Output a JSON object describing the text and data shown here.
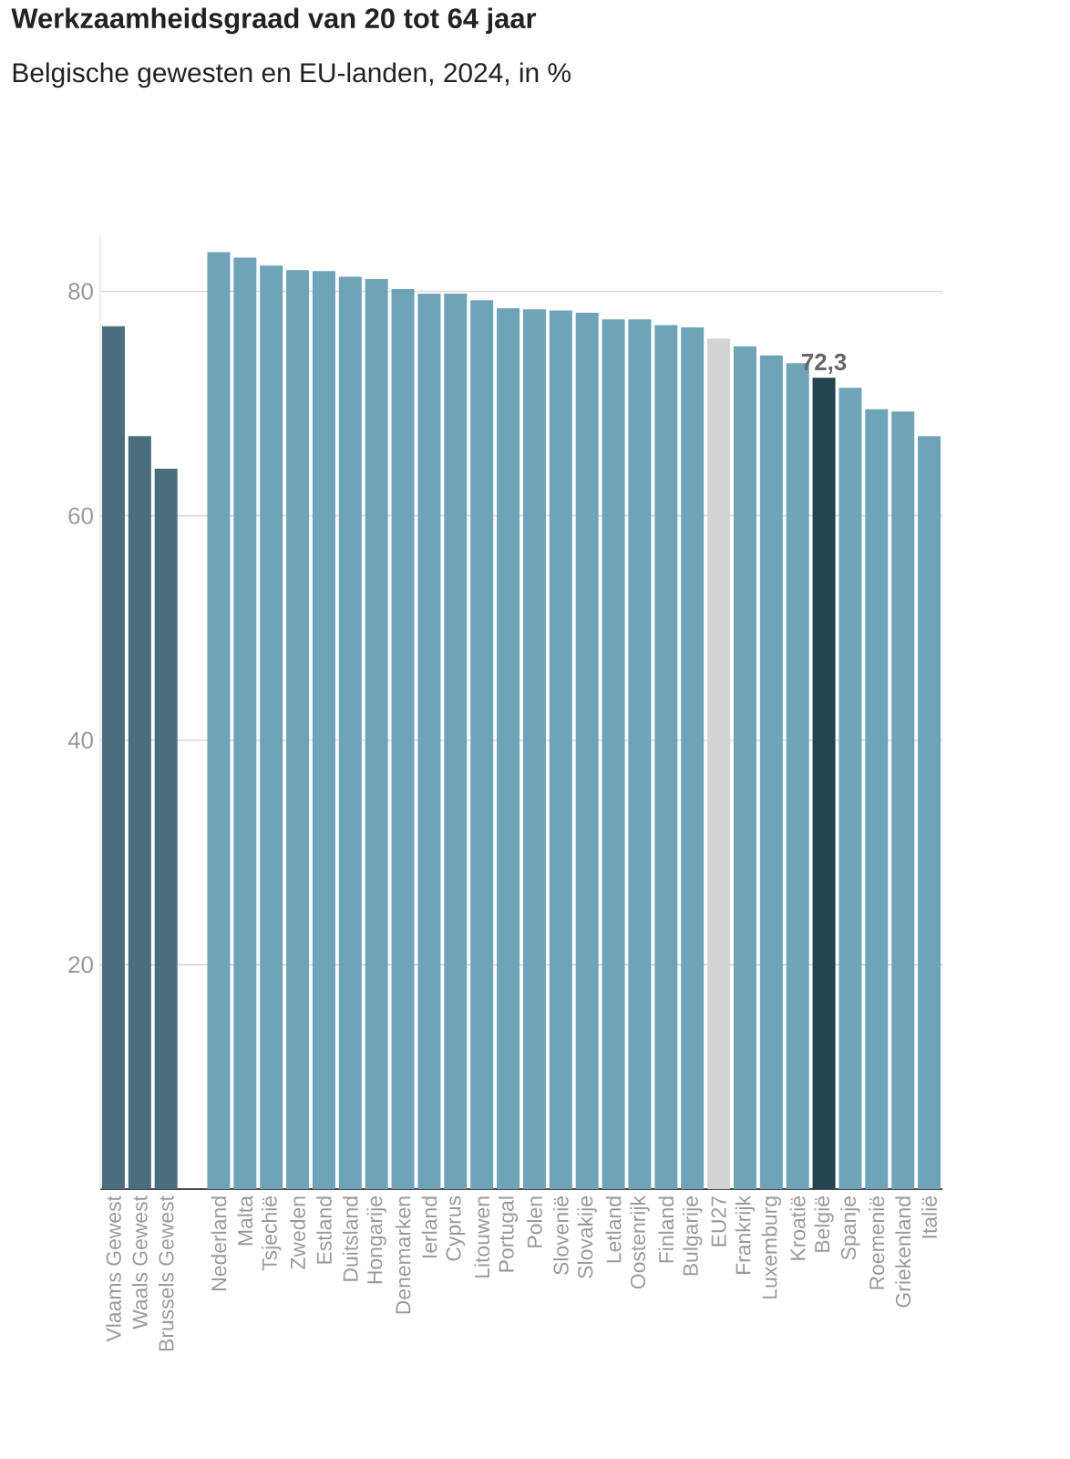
{
  "chart_data": {
    "type": "bar",
    "title": "Werkzaamheidsgraad van 20 tot 64 jaar",
    "subtitle": "Belgische gewesten en EU-landen, 2024, in %",
    "categories": [
      "Vlaams Gewest",
      "Waals Gewest",
      "Brussels Gewest",
      null,
      "Nederland",
      "Malta",
      "Tsjechië",
      "Zweden",
      "Estland",
      "Duitsland",
      "Hongarije",
      "Denemarken",
      "Ierland",
      "Cyprus",
      "Litouwen",
      "Portugal",
      "Polen",
      "Slovenië",
      "Slovakije",
      "Letland",
      "Oostenrijk",
      "Finland",
      "Bulgarije",
      "EU27",
      "Frankrijk",
      "Luxemburg",
      "Kroatië",
      "België",
      "Spanje",
      "Roemenië",
      "Griekenland",
      "Italië"
    ],
    "values": [
      76.9,
      67.1,
      64.2,
      null,
      83.5,
      83.0,
      82.3,
      81.9,
      81.8,
      81.3,
      81.1,
      80.2,
      79.8,
      79.8,
      79.2,
      78.5,
      78.4,
      78.3,
      78.1,
      77.5,
      77.5,
      77.0,
      76.8,
      75.8,
      75.1,
      74.3,
      73.6,
      72.3,
      71.4,
      69.5,
      69.3,
      67.1
    ],
    "colors": [
      "#4a6e7e",
      "#4a6e7e",
      "#4a6e7e",
      "#6fa3b8",
      "#6fa3b8",
      "#6fa3b8",
      "#6fa3b8",
      "#6fa3b8",
      "#6fa3b8",
      "#6fa3b8",
      "#6fa3b8",
      "#6fa3b8",
      "#6fa3b8",
      "#6fa3b8",
      "#6fa3b8",
      "#6fa3b8",
      "#6fa3b8",
      "#6fa3b8",
      "#6fa3b8",
      "#6fa3b8",
      "#6fa3b8",
      "#6fa3b8",
      "#6fa3b8",
      "#d3d3d3",
      "#6fa3b8",
      "#6fa3b8",
      "#6fa3b8",
      "#22434f",
      "#6fa3b8",
      "#6fa3b8",
      "#6fa3b8",
      "#6fa3b8"
    ],
    "value_labels": [
      null,
      null,
      null,
      null,
      null,
      null,
      null,
      null,
      null,
      null,
      null,
      null,
      null,
      null,
      null,
      null,
      null,
      null,
      null,
      null,
      null,
      null,
      null,
      null,
      null,
      null,
      null,
      "72,3",
      null,
      null,
      null,
      null
    ],
    "ylim": [
      0,
      85
    ],
    "yticks": [
      20,
      40,
      60,
      80
    ],
    "grid": "y"
  }
}
